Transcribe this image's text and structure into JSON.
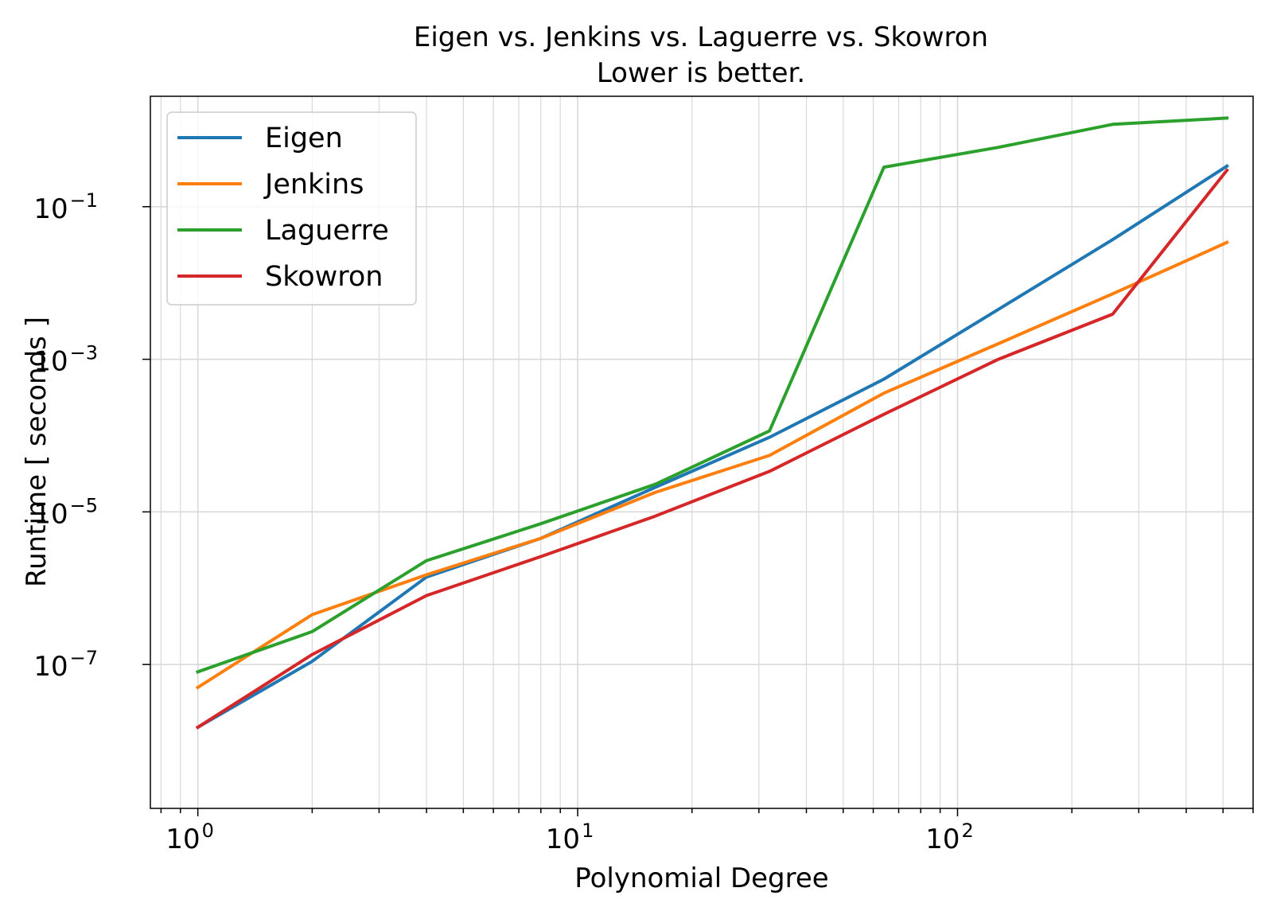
{
  "chart_data": {
    "type": "line",
    "title": "Eigen vs. Jenkins vs. Laguerre vs. Skowron",
    "subtitle": "Lower is better.",
    "xlabel": "Polynomial Degree",
    "ylabel": "Runtime [ seconds ]",
    "xscale": "log",
    "yscale": "log",
    "xlim": [
      0.75,
      600
    ],
    "ylim": [
      1.3e-09,
      2.8
    ],
    "grid": true,
    "legend_position": "top-left",
    "x": [
      1,
      2,
      4,
      8,
      16,
      32,
      64,
      128,
      256,
      512
    ],
    "x_ticks": [
      {
        "value": 1,
        "base": "10",
        "exp": "0"
      },
      {
        "value": 10,
        "base": "10",
        "exp": "1"
      },
      {
        "value": 100,
        "base": "10",
        "exp": "2"
      }
    ],
    "y_ticks": [
      {
        "value": 1e-07,
        "base": "10",
        "exp": "−7"
      },
      {
        "value": 1e-05,
        "base": "10",
        "exp": "−5"
      },
      {
        "value": 0.001,
        "base": "10",
        "exp": "−3"
      },
      {
        "value": 0.1,
        "base": "10",
        "exp": "−1"
      }
    ],
    "series": [
      {
        "name": "Eigen",
        "color": "#1f77b4",
        "values": [
          1.5e-08,
          1.1e-07,
          1.4e-06,
          4.5e-06,
          2.1e-05,
          9.5e-05,
          0.00055,
          0.0045,
          0.037,
          0.34
        ]
      },
      {
        "name": "Jenkins",
        "color": "#ff7f0e",
        "values": [
          5e-08,
          4.5e-07,
          1.5e-06,
          4.5e-06,
          1.8e-05,
          5.5e-05,
          0.00036,
          0.0016,
          0.0072,
          0.034
        ]
      },
      {
        "name": "Laguerre",
        "color": "#2ca02c",
        "values": [
          8e-08,
          2.7e-07,
          2.3e-06,
          7e-06,
          2.3e-05,
          0.000115,
          0.33,
          0.6,
          1.2,
          1.45
        ]
      },
      {
        "name": "Skowron",
        "color": "#d62728",
        "values": [
          1.5e-08,
          1.35e-07,
          8e-07,
          2.6e-06,
          8.8e-06,
          3.4e-05,
          0.00019,
          0.001,
          0.0039,
          0.3
        ]
      }
    ]
  }
}
